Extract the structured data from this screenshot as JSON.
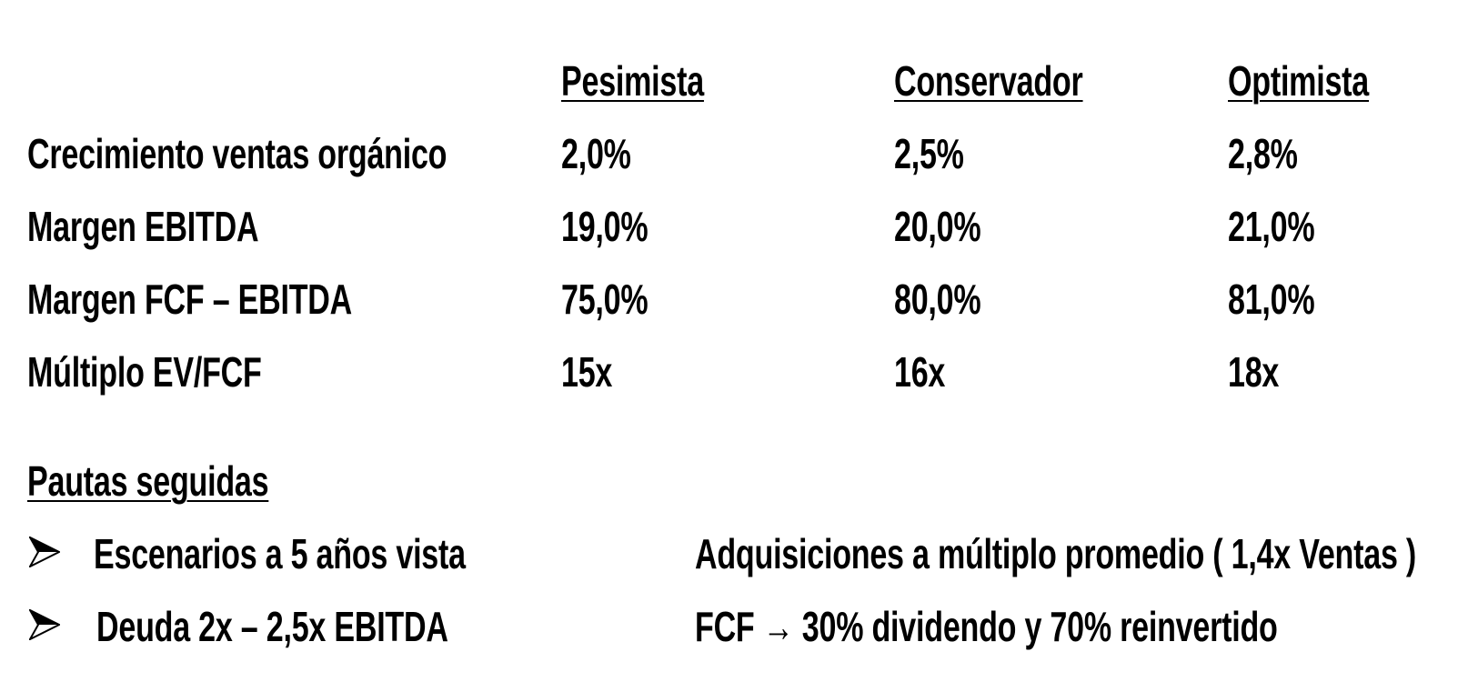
{
  "table": {
    "headers": [
      "Pesimista",
      "Conservador",
      "Optimista"
    ],
    "rows": [
      {
        "label": "Crecimiento ventas orgánico",
        "values": [
          "2,0%",
          "2,5%",
          "2,8%"
        ]
      },
      {
        "label": "Margen EBITDA",
        "values": [
          "19,0%",
          "20,0%",
          "21,0%"
        ]
      },
      {
        "label": "Margen FCF – EBITDA",
        "values": [
          "75,0%",
          "80,0%",
          "81,0%"
        ]
      },
      {
        "label": "Múltiplo EV/FCF",
        "values": [
          "15x",
          "16x",
          "18x"
        ]
      }
    ]
  },
  "guidelines": {
    "title": "Pautas seguidas",
    "bullets": [
      "Escenarios a 5 años vista",
      "Deuda 2x – 2,5x  EBITDA"
    ],
    "notes": [
      "Adquisiciones a múltiplo promedio  ( 1,4x Ventas )",
      "FCF → 30% dividendo y 70% reinvertido"
    ],
    "bullet_icon": "arrowhead-bullet-icon"
  }
}
